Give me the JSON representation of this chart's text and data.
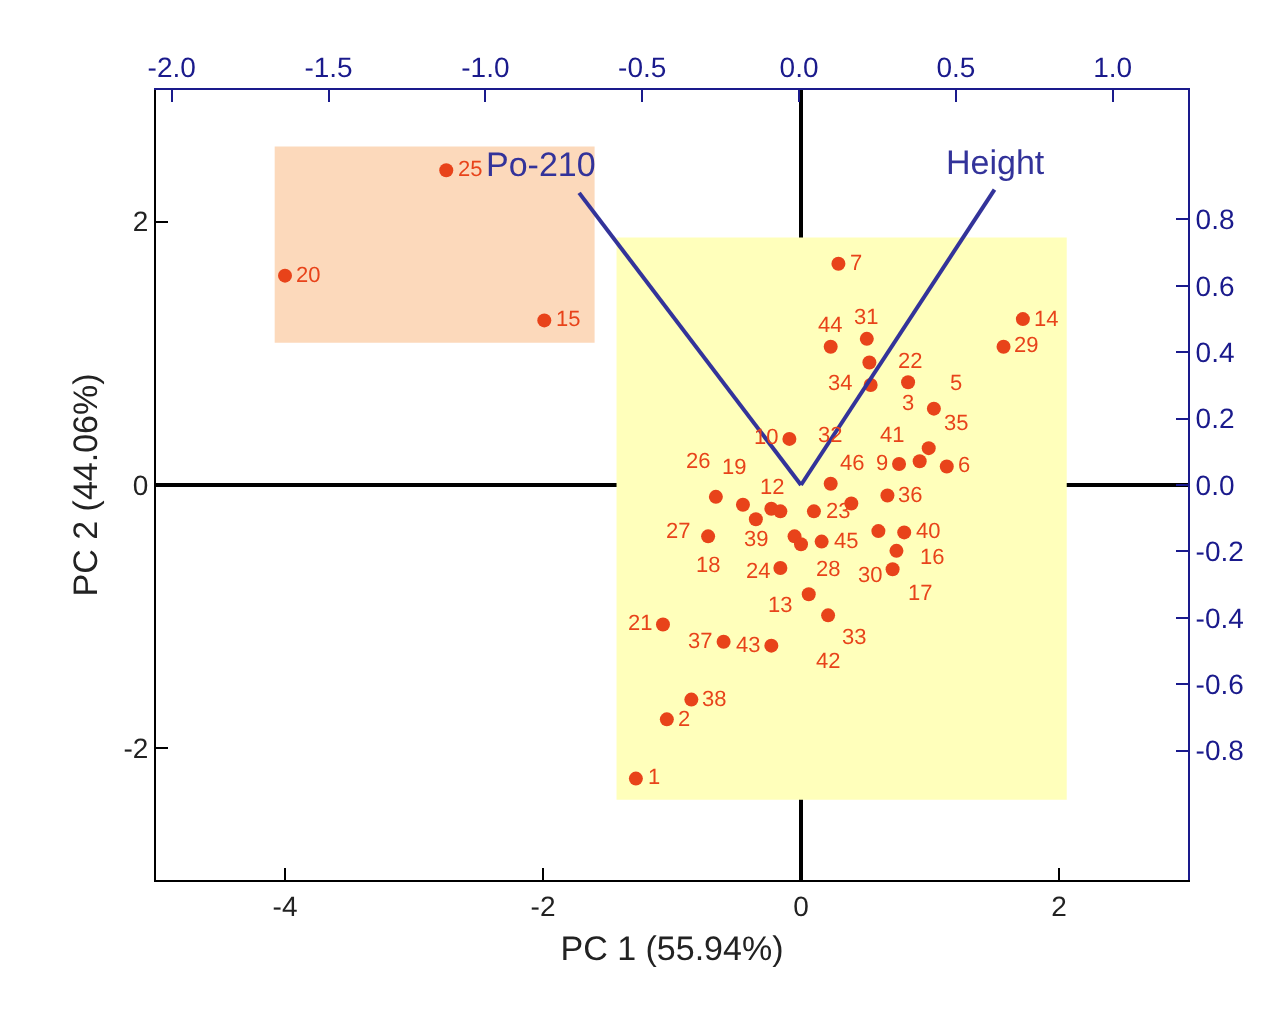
{
  "chart_data": {
    "type": "scatter",
    "xlabel": "PC 1 (55.94%)",
    "ylabel": "PC 2 (44.06%)",
    "xlim": [
      -5,
      3
    ],
    "ylim": [
      -3,
      3
    ],
    "xticks": [
      -4,
      -2,
      0,
      2
    ],
    "yticks": [
      -2,
      0,
      2
    ],
    "x2lim": [
      -2.05,
      1.24
    ],
    "x2ticks": [
      {
        "value": -2,
        "label": "-2.0"
      },
      {
        "value": -1.5,
        "label": "-1.5"
      },
      {
        "value": -1,
        "label": "-1.0"
      },
      {
        "value": -0.5,
        "label": "-0.5"
      },
      {
        "value": 0,
        "label": "0.0"
      },
      {
        "value": 0.5,
        "label": "0.5"
      },
      {
        "value": 1,
        "label": "1.0"
      }
    ],
    "y2lim": [
      -1.19,
      1.19
    ],
    "y2ticks": [
      {
        "value": 0.8,
        "label": "0.8"
      },
      {
        "value": 0.6,
        "label": "0.6"
      },
      {
        "value": 0.4,
        "label": "0.4"
      },
      {
        "value": 0.2,
        "label": "0.2"
      },
      {
        "value": 0,
        "label": "0.0"
      },
      {
        "value": -0.2,
        "label": "-0.2"
      },
      {
        "value": -0.4,
        "label": "-0.4"
      },
      {
        "value": -0.6,
        "label": "-0.6"
      },
      {
        "value": -0.8,
        "label": "-0.8"
      }
    ],
    "series": [
      {
        "type": "area",
        "marker": "none",
        "color": "#fcd9bb",
        "x": [
          -4.08,
          -1.6,
          -1.6,
          -4.08,
          -4.08
        ],
        "values": [
          1.08,
          1.08,
          2.57,
          2.57,
          1.08
        ]
      },
      {
        "type": "area",
        "marker": "none",
        "color": "#ffffbb",
        "x": [
          -1.43,
          2.06,
          2.06,
          -1.43,
          -1.43
        ],
        "values": [
          -2.39,
          -2.39,
          1.88,
          1.88,
          -2.39
        ]
      },
      {
        "marker": "circle",
        "color": "#e8431a",
        "x": [
          0.29,
          0.23,
          0.51,
          0.53,
          1.72,
          1.57,
          0.54,
          0.83,
          1.03,
          -0.09,
          0.99,
          0.76,
          0.92,
          1.13,
          0.23,
          -0.66,
          -0.45,
          -0.23,
          -0.16,
          -0.35,
          0.1,
          0.39,
          0.67,
          -0.72,
          -0.05,
          0.0,
          0.16,
          0.6,
          0.8,
          0.74,
          -0.16,
          0.71,
          0.06,
          0.21,
          -1.07,
          -0.6,
          -0.23,
          -0.85,
          -1.04,
          -1.28,
          -2.75,
          -4.0,
          -1.99
        ],
        "values": [
          1.68,
          1.05,
          1.11,
          0.93,
          1.26,
          1.05,
          0.76,
          0.78,
          0.58,
          0.35,
          0.28,
          0.16,
          0.18,
          0.14,
          0.01,
          -0.09,
          -0.15,
          -0.18,
          -0.2,
          -0.26,
          -0.2,
          -0.14,
          -0.08,
          -0.39,
          -0.39,
          -0.45,
          -0.43,
          -0.35,
          -0.36,
          -0.5,
          -0.63,
          -0.64,
          -0.83,
          -0.99,
          -1.06,
          -1.19,
          -1.22,
          -1.63,
          -1.78,
          -2.23,
          2.39,
          1.59,
          1.25
        ]
      },
      {
        "type": "line",
        "marker": "none",
        "axis": "y2",
        "name": "Po-210",
        "color": "#33339a",
        "x": [
          0,
          -1.72
        ],
        "values": [
          0,
          0.88
        ]
      },
      {
        "type": "line",
        "marker": "none",
        "axis": "y2",
        "name": "Height",
        "color": "#33339a",
        "x": [
          0,
          1.5
        ],
        "values": [
          0,
          0.89
        ]
      }
    ],
    "annotations": [
      {
        "text": "7",
        "x": 0.29,
        "y": 1.68
      },
      {
        "text": "44",
        "x": 0.23,
        "y": 1.05
      },
      {
        "text": "31",
        "x": 0.51,
        "y": 1.11
      },
      {
        "text": "22",
        "x": 0.53,
        "y": 0.93
      },
      {
        "text": "14",
        "x": 1.72,
        "y": 1.26
      },
      {
        "text": "29",
        "x": 1.57,
        "y": 1.05
      },
      {
        "text": "34",
        "x": 0.54,
        "y": 0.76
      },
      {
        "text": "3",
        "x": 0.83,
        "y": 0.78
      },
      {
        "text": "5",
        "x": 1.03,
        "y": 0.58
      },
      {
        "text": "10",
        "x": -0.09,
        "y": 0.35
      },
      {
        "text": "35",
        "x": 0.99,
        "y": 0.28
      },
      {
        "text": "9",
        "x": 0.76,
        "y": 0.16
      },
      {
        "text": "41",
        "x": 0.92,
        "y": 0.18
      },
      {
        "text": "6",
        "x": 1.13,
        "y": 0.14
      },
      {
        "text": "32",
        "x": 0.23,
        "y": 0.01
      },
      {
        "text": "27",
        "x": -0.66,
        "y": -0.09
      },
      {
        "text": "26",
        "x": -0.45,
        "y": -0.15
      },
      {
        "text": "12",
        "x": -0.23,
        "y": -0.18
      },
      {
        "text": "19",
        "x": -0.16,
        "y": -0.2
      },
      {
        "text": "39",
        "x": -0.35,
        "y": -0.26
      },
      {
        "text": "23",
        "x": 0.1,
        "y": -0.2
      },
      {
        "text": "46",
        "x": 0.39,
        "y": -0.14
      },
      {
        "text": "36",
        "x": 0.67,
        "y": -0.08
      },
      {
        "text": "18",
        "x": -0.72,
        "y": -0.39
      },
      {
        "text": "24",
        "x": -0.05,
        "y": -0.39
      },
      {
        "text": "28",
        "x": 0.0,
        "y": -0.45
      },
      {
        "text": "45",
        "x": 0.16,
        "y": -0.43
      },
      {
        "text": "40",
        "x": 0.6,
        "y": -0.35
      },
      {
        "text": "16",
        "x": 0.8,
        "y": -0.36
      },
      {
        "text": "30",
        "x": 0.74,
        "y": -0.5
      },
      {
        "text": "13",
        "x": -0.16,
        "y": -0.63
      },
      {
        "text": "17",
        "x": 0.71,
        "y": -0.64
      },
      {
        "text": "33",
        "x": 0.06,
        "y": -0.83
      },
      {
        "text": "42",
        "x": 0.21,
        "y": -0.99
      },
      {
        "text": "21",
        "x": -1.07,
        "y": -1.06
      },
      {
        "text": "37",
        "x": -0.6,
        "y": -1.19
      },
      {
        "text": "43",
        "x": -0.23,
        "y": -1.22
      },
      {
        "text": "38",
        "x": -0.85,
        "y": -1.63
      },
      {
        "text": "2",
        "x": -1.04,
        "y": -1.78
      },
      {
        "text": "1",
        "x": -1.28,
        "y": -2.23
      },
      {
        "text": "25",
        "x": -2.75,
        "y": 2.39
      },
      {
        "text": "20",
        "x": -4.0,
        "y": 1.59
      },
      {
        "text": "15",
        "x": -1.99,
        "y": 1.25
      }
    ]
  }
}
